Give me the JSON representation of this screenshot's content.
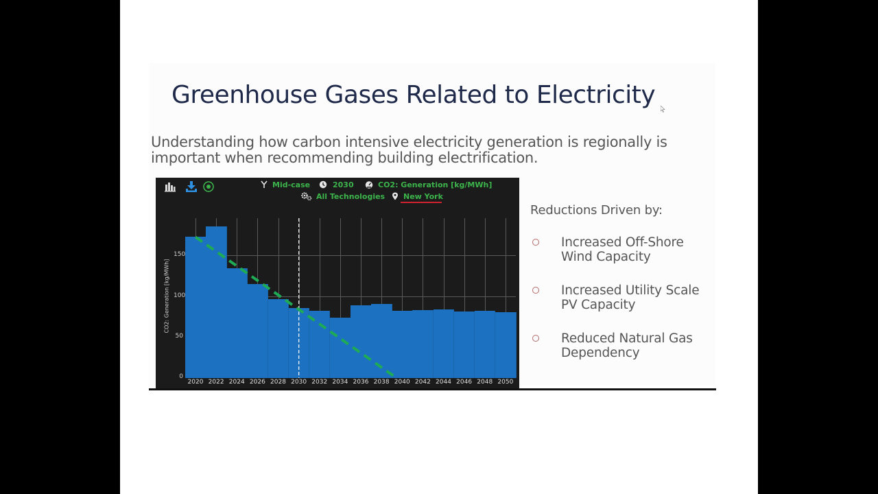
{
  "slide": {
    "title": "Greenhouse Gases Related to Electricity",
    "subtitle": "Understanding how carbon intensive electricity generation is regionally is important when recommending building electrification."
  },
  "chart_widget": {
    "toolbar": {
      "icons": [
        "bar-chart-icon",
        "download-icon",
        "target-icon"
      ],
      "colors": {
        "bar_chart": "#d9d9d9",
        "download": "#2f8fe0",
        "target": "#3cb44b"
      }
    },
    "filters": {
      "scenario": "Mid-case",
      "year": "2030",
      "metric": "CO2: Generation [kg/MWh]",
      "technology": "All Technologies",
      "region": "New York"
    },
    "colors": {
      "background": "#1b1b1b",
      "bar": "#1c72c0",
      "filter_text": "#3cb44b",
      "trend_line": "#1faa55",
      "region_underline": "#d0222f"
    }
  },
  "chart_data": {
    "type": "bar",
    "title": "",
    "xlabel": "",
    "ylabel": "CO2: Generation [kg/MWh]",
    "categories": [
      "2020",
      "2022",
      "2024",
      "2026",
      "2028",
      "2030",
      "2032",
      "2034",
      "2036",
      "2038",
      "2040",
      "2042",
      "2044",
      "2046",
      "2048",
      "2050"
    ],
    "values": [
      172,
      185,
      134,
      115,
      96,
      85,
      82,
      74,
      89,
      90,
      82,
      83,
      84,
      81,
      82,
      80
    ],
    "ylim": [
      0,
      195
    ],
    "yticks": [
      0,
      50,
      100,
      150
    ],
    "grid": true,
    "annotations": [
      {
        "type": "vertical-dashed-line",
        "x": "2030",
        "color": "#ffffff"
      },
      {
        "type": "dashed-trend-line",
        "from": {
          "x": "2020",
          "y": 172
        },
        "to": {
          "x": "2040",
          "y": 0
        },
        "color": "#1faa55"
      }
    ]
  },
  "right_panel": {
    "heading": "Reductions Driven by:",
    "bullets": [
      {
        "line1": "Increased Off-Shore",
        "line2": "Wind Capacity"
      },
      {
        "line1": "Increased Utility Scale",
        "line2": "PV Capacity"
      },
      {
        "line1": "Reduced Natural Gas",
        "line2": "Dependency"
      }
    ]
  }
}
